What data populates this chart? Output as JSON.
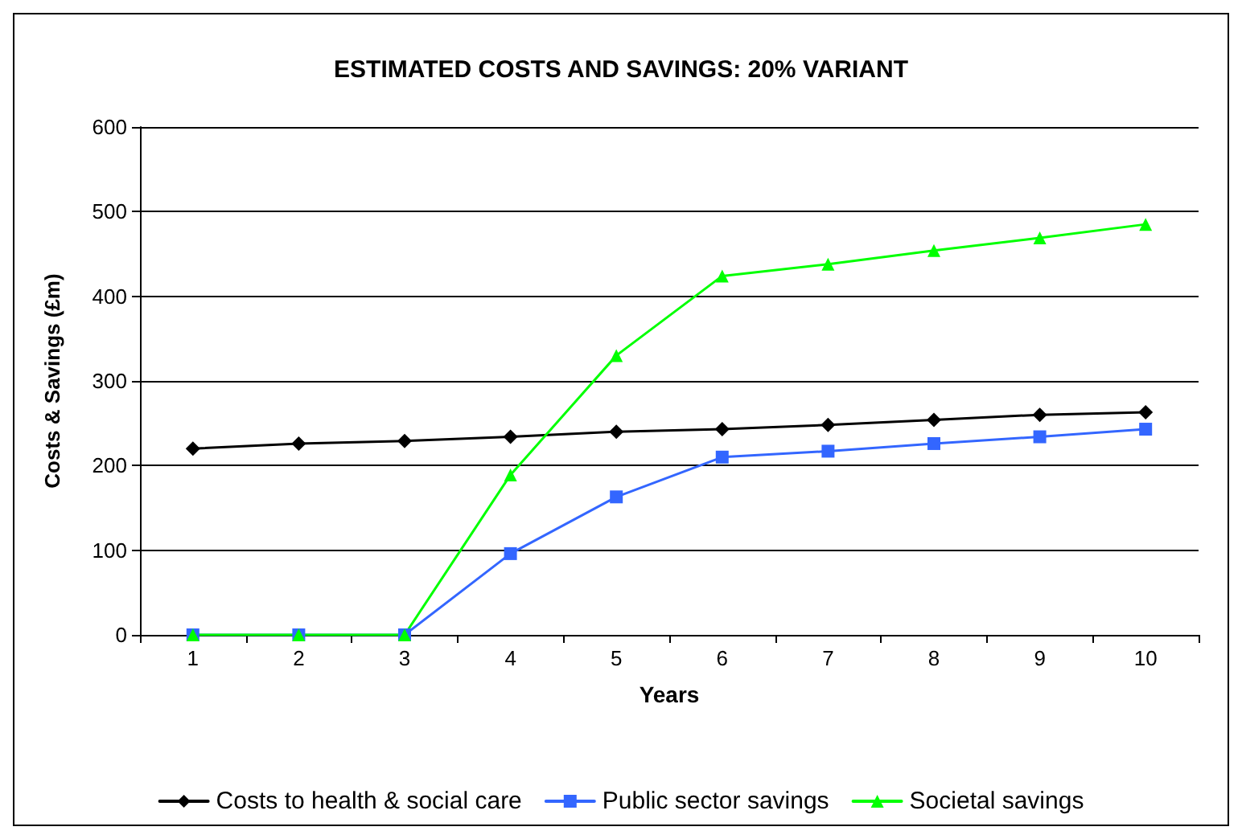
{
  "chart_data": {
    "type": "line",
    "title": "ESTIMATED COSTS AND SAVINGS: 20% VARIANT",
    "xlabel": "Years",
    "ylabel": "Costs & Savings (£m)",
    "categories": [
      "1",
      "2",
      "3",
      "4",
      "5",
      "6",
      "7",
      "8",
      "9",
      "10"
    ],
    "series": [
      {
        "name": "Costs to health & social care",
        "color": "#000000",
        "marker": "diamond",
        "values": [
          220,
          226,
          229,
          234,
          240,
          243,
          248,
          254,
          260,
          263
        ]
      },
      {
        "name": "Public sector savings",
        "color": "#3366ff",
        "marker": "square",
        "values": [
          0,
          0,
          0,
          96,
          163,
          210,
          217,
          226,
          234,
          243
        ]
      },
      {
        "name": "Societal savings",
        "color": "#00ff00",
        "marker": "triangle",
        "values": [
          0,
          0,
          0,
          189,
          330,
          424,
          438,
          454,
          469,
          485
        ]
      }
    ],
    "ylim": [
      0,
      600
    ],
    "yticks": [
      0,
      100,
      200,
      300,
      400,
      500,
      600
    ],
    "grid": "y",
    "legend": "bottom"
  }
}
